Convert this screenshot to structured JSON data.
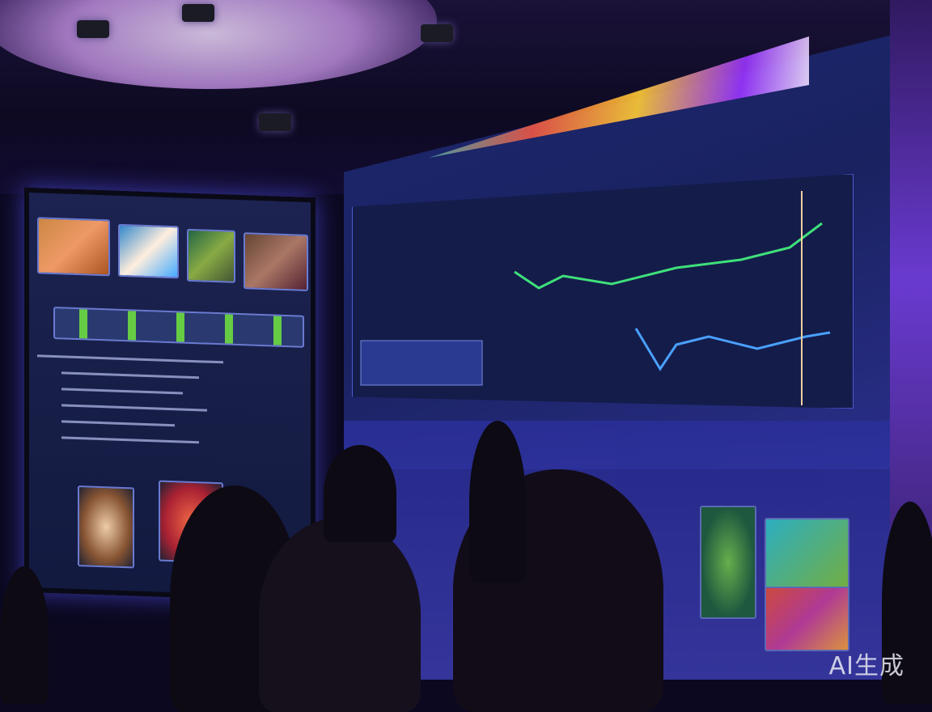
{
  "scene": {
    "accent_colors": {
      "screen_glow": "#5a5aff",
      "chart_line_green": "#3fe07a",
      "chart_line_blue": "#4aa0ff",
      "ambient_purple": "#6a3ad0"
    }
  },
  "watermark": {
    "text": "AI生成"
  }
}
